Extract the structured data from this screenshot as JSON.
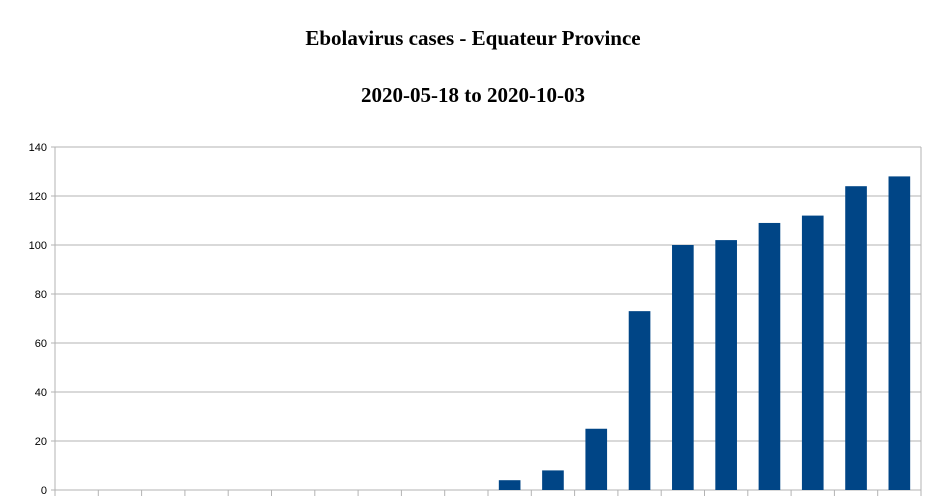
{
  "chart_data": {
    "type": "bar",
    "title": "Ebolavirus cases - Equateur Province",
    "subtitle": "2020-05-18 to 2020-10-03",
    "xlabel": "",
    "ylabel": "",
    "ylim": [
      0,
      140
    ],
    "yticks": [
      0,
      20,
      40,
      60,
      80,
      100,
      120,
      140
    ],
    "grid": true,
    "legend": "none",
    "bar_color": "#004586",
    "categories": [
      "",
      "",
      "",
      "",
      "",
      "",
      "",
      "",
      "",
      "",
      "",
      "",
      "",
      "",
      "",
      "",
      "",
      "",
      "",
      ""
    ],
    "values": [
      0,
      0,
      0,
      0,
      0,
      0,
      0,
      0,
      0,
      0,
      4,
      8,
      25,
      73,
      100,
      102,
      109,
      112,
      124,
      128
    ]
  }
}
